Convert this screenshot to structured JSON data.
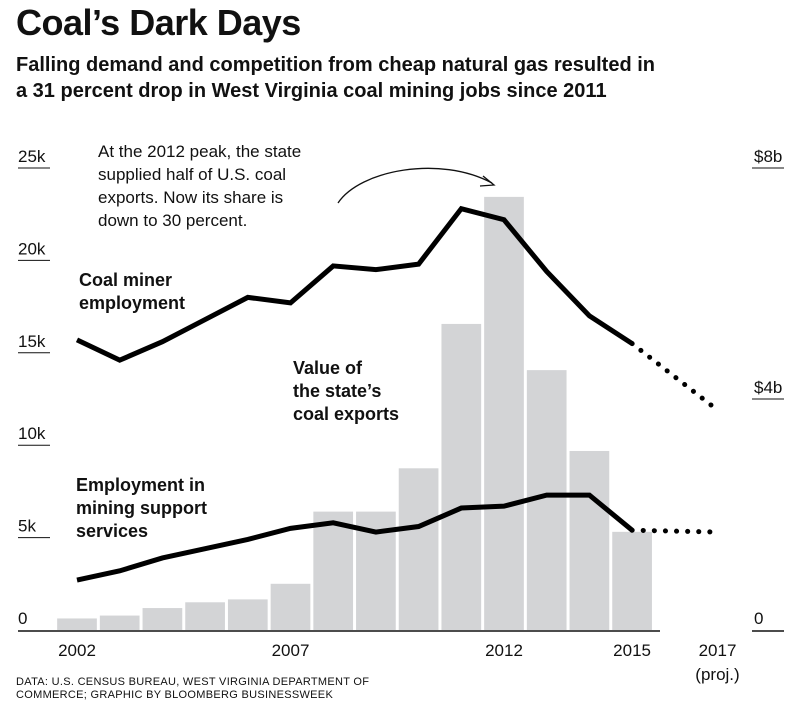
{
  "header": {
    "title": "Coal’s Dark Days",
    "subtitle_line1": "Falling demand and competition from cheap natural gas resulted in",
    "subtitle_line2": "a 31 percent drop in West Virginia coal mining jobs since 2011"
  },
  "source": {
    "line1": "DATA: U.S. CENSUS BUREAU, WEST VIRGINIA DEPARTMENT OF",
    "line2": "COMMERCE; GRAPHIC BY BLOOMBERG BUSINESSWEEK"
  },
  "chart_data": {
    "type": "bar",
    "x_ticks": [
      {
        "year": 2002,
        "label": "2002"
      },
      {
        "year": 2007,
        "label": "2007"
      },
      {
        "year": 2012,
        "label": "2012"
      },
      {
        "year": 2015,
        "label": "2015"
      },
      {
        "year": 2017,
        "label": "2017",
        "sub": "(proj.)"
      }
    ],
    "y_left": {
      "min": 0,
      "max": 25000,
      "ticks": [
        {
          "value": 0,
          "label": "0"
        },
        {
          "value": 5000,
          "label": "5k"
        },
        {
          "value": 10000,
          "label": "10k"
        },
        {
          "value": 15000,
          "label": "15k"
        },
        {
          "value": 20000,
          "label": "20k"
        },
        {
          "value": 25000,
          "label": "25k"
        }
      ]
    },
    "y_right": {
      "min": 0,
      "max": 8,
      "unit": "billion USD",
      "ticks": [
        {
          "value": 0,
          "label": "0"
        },
        {
          "value": 4,
          "label": "$4b"
        },
        {
          "value": 8,
          "label": "$8b"
        }
      ]
    },
    "bars": {
      "name": "Value of the state’s coal exports",
      "name_lines": [
        "Value of",
        "the state’s",
        "coal exports"
      ],
      "axis": "right",
      "color": "#d3d4d6",
      "x": [
        2002,
        2003,
        2004,
        2005,
        2006,
        2007,
        2008,
        2009,
        2010,
        2011,
        2012,
        2013,
        2014,
        2015
      ],
      "values": [
        0.2,
        0.25,
        0.38,
        0.48,
        0.53,
        0.8,
        2.05,
        2.05,
        2.8,
        5.3,
        7.5,
        4.5,
        3.1,
        1.7
      ]
    },
    "series": [
      {
        "name": "Coal miner employment",
        "name_lines": [
          "Coal miner",
          "employment"
        ],
        "axis": "left",
        "color": "#000000",
        "x": [
          2002,
          2003,
          2004,
          2005,
          2006,
          2007,
          2008,
          2009,
          2010,
          2011,
          2012,
          2013,
          2014,
          2015
        ],
        "values": [
          15700,
          14600,
          15600,
          16800,
          18000,
          17700,
          19700,
          19500,
          19800,
          22800,
          22200,
          19400,
          17000,
          15500
        ],
        "projection": {
          "x": [
            2015,
            2017
          ],
          "values": [
            15500,
            11900
          ]
        }
      },
      {
        "name": "Employment in mining support services",
        "name_lines": [
          "Employment in",
          "mining support",
          "services"
        ],
        "axis": "left",
        "color": "#000000",
        "x": [
          2002,
          2003,
          2004,
          2005,
          2006,
          2007,
          2008,
          2009,
          2010,
          2011,
          2012,
          2013,
          2014,
          2015
        ],
        "values": [
          2700,
          3200,
          3900,
          4400,
          4900,
          5500,
          5800,
          5300,
          5600,
          6600,
          6700,
          7300,
          7300,
          5400
        ],
        "projection": {
          "x": [
            2015,
            2017
          ],
          "values": [
            5400,
            5300
          ]
        }
      }
    ],
    "annotation": {
      "lines": [
        "At the 2012 peak, the state",
        "supplied half of U.S. coal",
        "exports. Now its share is",
        "down to 30 percent."
      ]
    }
  }
}
